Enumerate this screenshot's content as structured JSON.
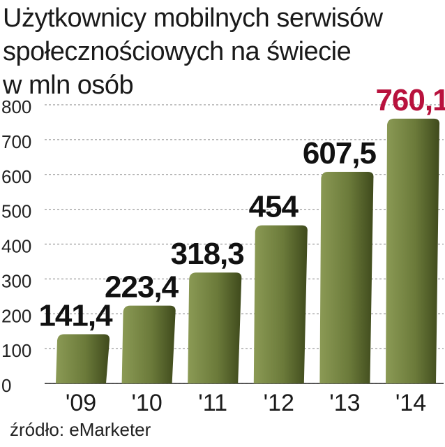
{
  "title_lines": [
    "Użytkownicy mobilnych serwisów",
    "społecznościowych na świecie",
    "w mln osób"
  ],
  "source": "źródło: eMarketer",
  "colors": {
    "bar_light": "#8b9a55",
    "bar_dark": "#3f4a1c",
    "highlight_label": "#b8123d",
    "label": "#111111",
    "grid": "#9a9a9a"
  },
  "chart_data": {
    "type": "bar",
    "categories": [
      "'09",
      "'10",
      "'11",
      "'12",
      "'13",
      "'14"
    ],
    "values": [
      141.4,
      223.4,
      318.3,
      454,
      607.5,
      760.1
    ],
    "value_labels": [
      "141,4",
      "223,4",
      "318,3",
      "454",
      "607,5",
      "760,1"
    ],
    "highlight_index": 5,
    "ylim": [
      0,
      800
    ],
    "yticks": [
      0,
      100,
      200,
      300,
      400,
      500,
      600,
      700,
      800
    ],
    "grid": true
  }
}
